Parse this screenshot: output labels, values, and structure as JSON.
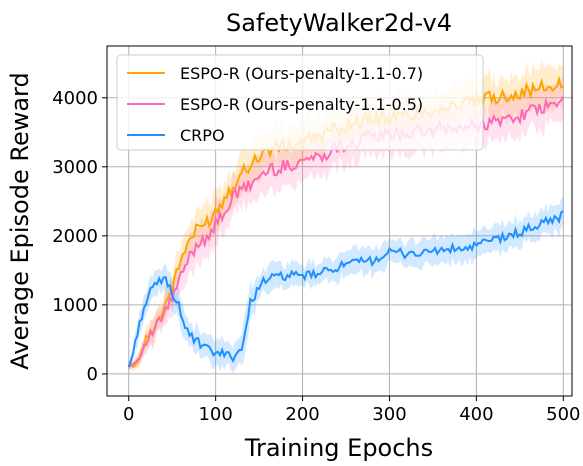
{
  "chart_data": {
    "type": "line",
    "title": "SafetyWalker2d-v4",
    "xlabel": "Training Epochs",
    "ylabel": "Average Episode Reward",
    "xlim": [
      -25,
      510
    ],
    "ylim": [
      -320,
      4750
    ],
    "xticks": [
      0,
      100,
      200,
      300,
      400,
      500
    ],
    "yticks": [
      0,
      1000,
      2000,
      3000,
      4000
    ],
    "grid": true,
    "legend_position": "top-left",
    "series": [
      {
        "name": "ESPO-R (Ours-penalty-1.1-0.7)",
        "color": "#ffa500",
        "x": [
          0,
          10,
          20,
          30,
          40,
          50,
          60,
          70,
          80,
          90,
          100,
          110,
          120,
          130,
          140,
          150,
          160,
          180,
          200,
          220,
          240,
          260,
          280,
          300,
          320,
          340,
          360,
          380,
          400,
          420,
          440,
          460,
          480,
          500
        ],
        "y": [
          100,
          150,
          500,
          700,
          950,
          1250,
          1650,
          1950,
          2100,
          2200,
          2350,
          2550,
          2750,
          2900,
          3050,
          3150,
          3250,
          3300,
          3350,
          3450,
          3550,
          3650,
          3700,
          3700,
          3750,
          3800,
          3850,
          3900,
          3950,
          4000,
          4050,
          4100,
          4150,
          4200
        ],
        "band": [
          60,
          80,
          150,
          200,
          220,
          240,
          260,
          280,
          300,
          300,
          300,
          300,
          300,
          300,
          300,
          300,
          300,
          300,
          300,
          300,
          300,
          300,
          300,
          300,
          300,
          300,
          300,
          300,
          300,
          300,
          300,
          300,
          300,
          300
        ]
      },
      {
        "name": "ESPO-R (Ours-penalty-1.1-0.5)",
        "color": "#ff69b4",
        "x": [
          0,
          10,
          20,
          30,
          40,
          50,
          60,
          70,
          80,
          90,
          100,
          110,
          120,
          130,
          140,
          150,
          160,
          180,
          200,
          220,
          240,
          260,
          280,
          300,
          320,
          340,
          360,
          380,
          400,
          420,
          440,
          460,
          480,
          500
        ],
        "y": [
          100,
          200,
          450,
          650,
          850,
          1100,
          1400,
          1700,
          1900,
          2000,
          2150,
          2350,
          2550,
          2650,
          2750,
          2850,
          2950,
          3000,
          3100,
          3150,
          3300,
          3350,
          3450,
          3450,
          3500,
          3500,
          3550,
          3550,
          3600,
          3650,
          3700,
          3800,
          3850,
          3950
        ],
        "band": [
          60,
          80,
          150,
          200,
          220,
          240,
          260,
          280,
          300,
          300,
          300,
          300,
          300,
          300,
          300,
          300,
          300,
          300,
          300,
          300,
          300,
          300,
          300,
          300,
          300,
          300,
          300,
          300,
          300,
          300,
          300,
          300,
          300,
          300
        ]
      },
      {
        "name": "CRPO",
        "color": "#1e90ff",
        "x": [
          0,
          5,
          10,
          15,
          20,
          25,
          30,
          35,
          40,
          45,
          50,
          55,
          60,
          65,
          70,
          80,
          90,
          100,
          110,
          120,
          125,
          130,
          135,
          140,
          150,
          160,
          180,
          200,
          220,
          240,
          260,
          280,
          300,
          320,
          340,
          360,
          380,
          400,
          420,
          440,
          460,
          480,
          500
        ],
        "y": [
          100,
          300,
          600,
          850,
          1050,
          1200,
          1250,
          1350,
          1380,
          1300,
          1200,
          1050,
          900,
          700,
          550,
          450,
          350,
          300,
          280,
          260,
          300,
          400,
          650,
          1000,
          1300,
          1380,
          1420,
          1420,
          1450,
          1550,
          1600,
          1650,
          1750,
          1750,
          1750,
          1800,
          1800,
          1850,
          1950,
          2000,
          2100,
          2200,
          2300
        ],
        "band": [
          60,
          100,
          150,
          180,
          200,
          200,
          200,
          200,
          200,
          200,
          200,
          200,
          200,
          200,
          200,
          200,
          200,
          200,
          200,
          200,
          200,
          250,
          300,
          250,
          200,
          200,
          180,
          180,
          180,
          180,
          200,
          200,
          200,
          200,
          200,
          200,
          200,
          200,
          200,
          200,
          200,
          200,
          200
        ]
      }
    ]
  }
}
